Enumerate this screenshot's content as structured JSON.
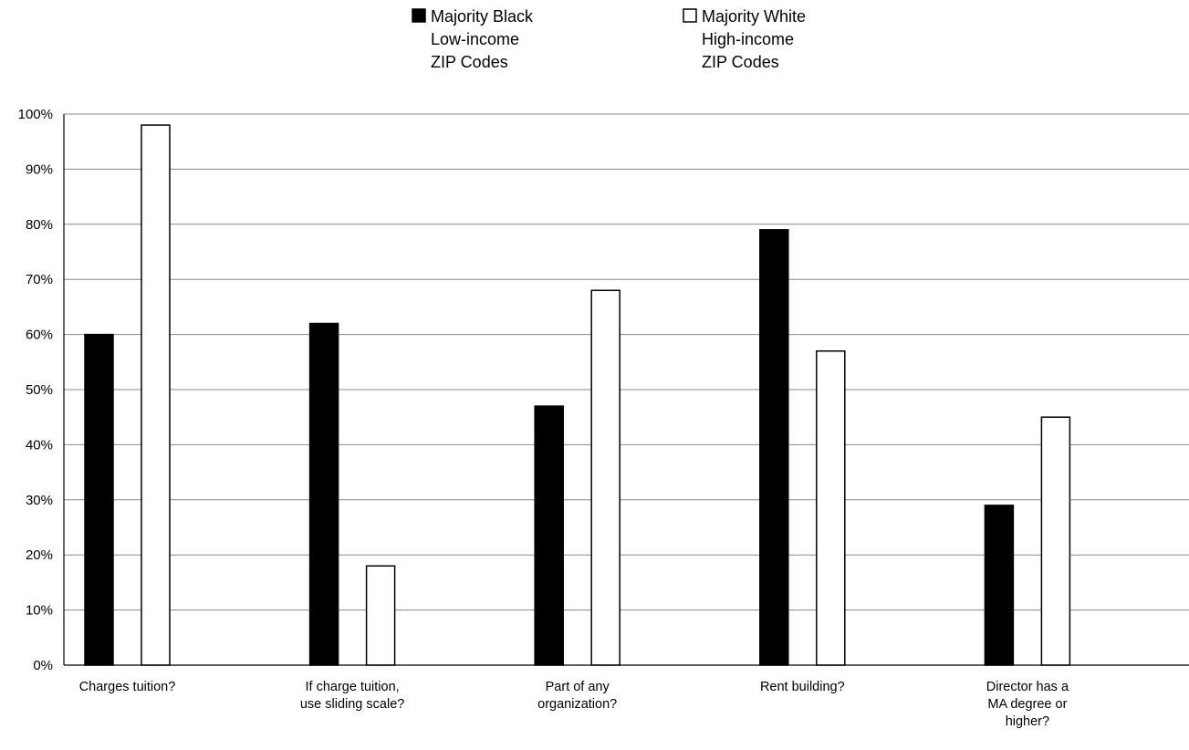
{
  "chart_data": {
    "type": "bar",
    "categories": [
      [
        "Charges tuition?"
      ],
      [
        "If charge tuition,",
        "use sliding scale?"
      ],
      [
        "Part of any",
        "organization?"
      ],
      [
        "Rent building?"
      ],
      [
        "Director has a",
        "MA degree or",
        "higher?"
      ]
    ],
    "series": [
      {
        "name": [
          "Majority Black",
          "Low-income",
          "ZIP Codes"
        ],
        "values": [
          60,
          62,
          47,
          79,
          29
        ],
        "fill": "#000000"
      },
      {
        "name": [
          "Majority White",
          "High-income",
          "ZIP Codes"
        ],
        "values": [
          98,
          18,
          68,
          57,
          45
        ],
        "fill": "#ffffff"
      }
    ],
    "yticks": [
      "0%",
      "10%",
      "20%",
      "30%",
      "40%",
      "50%",
      "60%",
      "70%",
      "80%",
      "90%",
      "100%"
    ],
    "ylim": [
      0,
      100
    ],
    "grid": true,
    "legend_position": "top-center",
    "colors": {
      "axis": "#000000",
      "grid": "#888888",
      "bar_outline": "#000000"
    }
  }
}
